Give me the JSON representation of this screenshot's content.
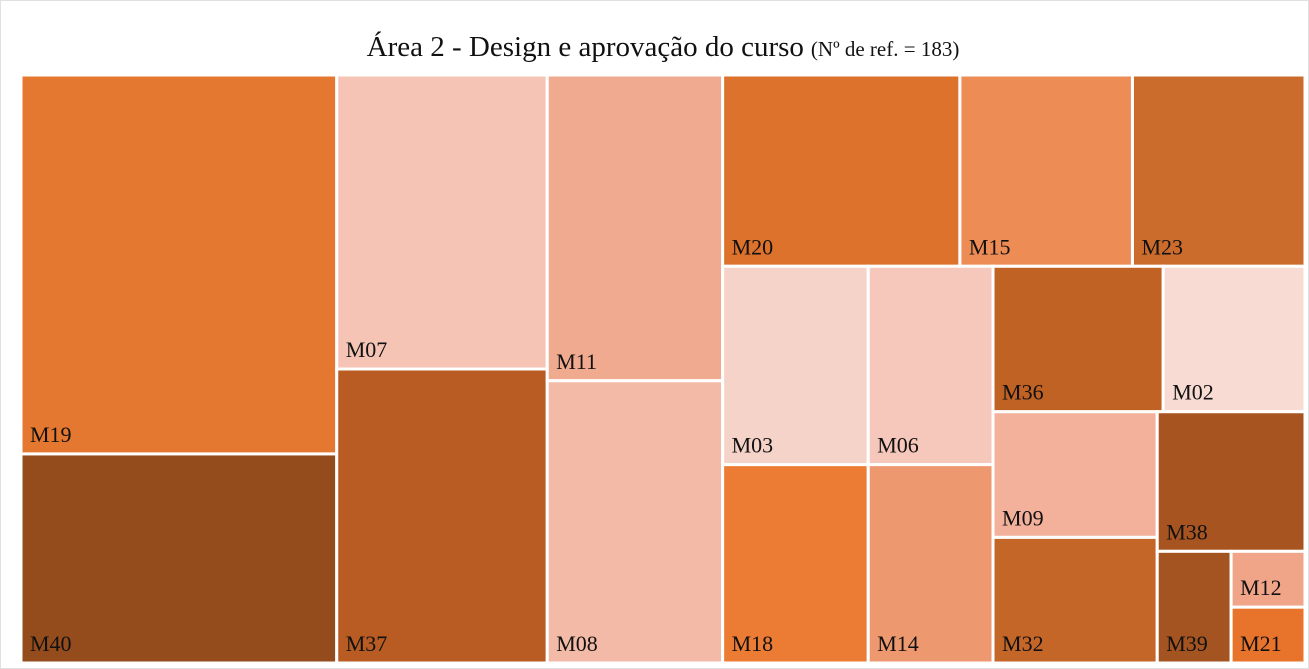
{
  "chart_data": {
    "type": "treemap",
    "title": "Área 2 - Design e aprovação do curso",
    "subtitle": "(Nº de ref. = 183)",
    "categories": [
      "M19",
      "M40",
      "M07",
      "M37",
      "M11",
      "M08",
      "M20",
      "M15",
      "M23",
      "M03",
      "M06",
      "M18",
      "M14",
      "M36",
      "M02",
      "M09",
      "M32",
      "M38",
      "M39",
      "M12",
      "M21"
    ],
    "values": [
      29,
      16,
      15,
      15,
      13,
      12,
      11,
      8,
      8,
      7,
      6,
      7,
      6,
      6,
      5,
      5,
      5,
      5,
      2,
      1,
      1
    ],
    "colors": [
      "#e57830",
      "#954c1c",
      "#f5c4b4",
      "#b85c24",
      "#f0aa8f",
      "#f3baa7",
      "#dc722c",
      "#ee8c56",
      "#cc6c2c",
      "#f6d3c8",
      "#f6c7bb",
      "#ec7c34",
      "#ee9870",
      "#c06224",
      "#f8dcd3",
      "#f3b19c",
      "#c46628",
      "#a85420",
      "#a45420",
      "#f0a488",
      "#e8742c"
    ]
  }
}
